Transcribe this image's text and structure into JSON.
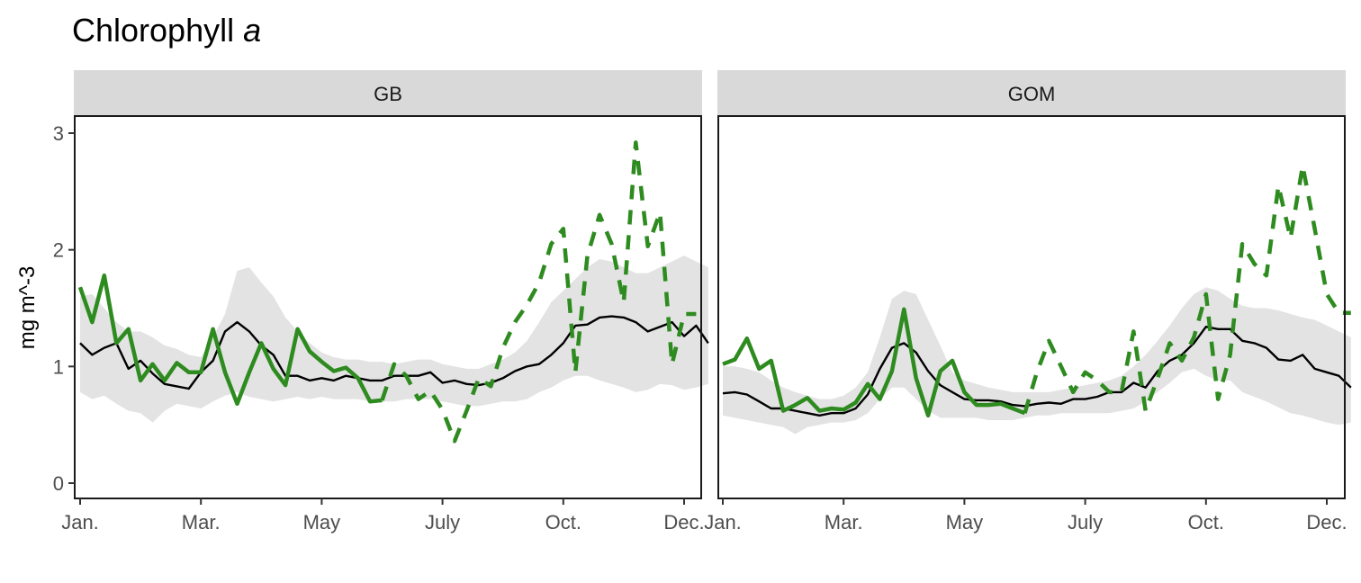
{
  "chart_data": {
    "type": "line",
    "title": "Chlorophyll",
    "title_italic": "a",
    "ylabel": "mg m^-3",
    "xlabel": "",
    "ylim": [
      0,
      3
    ],
    "yticks": [
      0,
      1,
      2,
      3
    ],
    "x_units": "week of year",
    "xlim": [
      1,
      53
    ],
    "xtick_positions": [
      1,
      11,
      21,
      31,
      41,
      51
    ],
    "grid": false,
    "legend": "none",
    "colors": {
      "observed": "#2e8b1f",
      "mean": "#000000",
      "band": "#e3e3e3",
      "strip": "#d9d9d9"
    },
    "panels": [
      {
        "name": "GB",
        "xtick_labels": [
          "Jan.",
          "Mar.",
          "May",
          "July",
          "Oct.",
          "Dec."
        ],
        "band_lower": [
          0.78,
          0.72,
          0.75,
          0.68,
          0.62,
          0.6,
          0.52,
          0.62,
          0.68,
          0.66,
          0.64,
          0.7,
          0.75,
          0.78,
          0.74,
          0.72,
          0.7,
          0.72,
          0.74,
          0.72,
          0.74,
          0.72,
          0.72,
          0.72,
          0.7,
          0.7,
          0.7,
          0.72,
          0.72,
          0.72,
          0.7,
          0.68,
          0.66,
          0.66,
          0.68,
          0.7,
          0.7,
          0.72,
          0.78,
          0.82,
          0.88,
          0.92,
          0.92,
          0.88,
          0.85,
          0.82,
          0.78,
          0.8,
          0.85,
          0.84,
          0.8,
          0.82,
          0.85
        ],
        "band_upper": [
          1.6,
          1.62,
          1.5,
          1.38,
          1.3,
          1.3,
          1.25,
          1.18,
          1.15,
          1.1,
          1.08,
          1.25,
          1.45,
          1.82,
          1.85,
          1.72,
          1.6,
          1.42,
          1.3,
          1.2,
          1.12,
          1.08,
          1.06,
          1.06,
          1.04,
          1.04,
          1.02,
          1.04,
          1.06,
          1.06,
          1.02,
          1.0,
          0.98,
          0.98,
          1.02,
          1.06,
          1.12,
          1.22,
          1.38,
          1.55,
          1.65,
          1.75,
          1.85,
          1.92,
          1.9,
          1.85,
          1.8,
          1.8,
          1.85,
          1.9,
          1.95,
          1.9,
          1.85
        ],
        "mean": [
          1.2,
          1.1,
          1.16,
          1.2,
          0.98,
          1.05,
          0.94,
          0.85,
          0.83,
          0.81,
          0.95,
          1.05,
          1.3,
          1.38,
          1.3,
          1.18,
          1.1,
          0.92,
          0.92,
          0.88,
          0.9,
          0.88,
          0.92,
          0.9,
          0.88,
          0.88,
          0.92,
          0.92,
          0.92,
          0.95,
          0.86,
          0.88,
          0.85,
          0.84,
          0.86,
          0.9,
          0.96,
          1.0,
          1.02,
          1.1,
          1.2,
          1.35,
          1.36,
          1.42,
          1.43,
          1.42,
          1.38,
          1.3,
          1.34,
          1.38,
          1.26,
          1.35,
          1.2
        ],
        "observed_solid": [
          [
            1,
            1.68
          ],
          [
            2,
            1.38
          ],
          [
            3,
            1.78
          ],
          [
            4,
            1.2
          ],
          [
            5,
            1.32
          ],
          [
            6,
            0.88
          ],
          [
            7,
            1.02
          ],
          [
            8,
            0.88
          ],
          [
            9,
            1.03
          ],
          [
            10,
            0.95
          ],
          [
            11,
            0.95
          ],
          [
            12,
            1.32
          ],
          [
            13,
            0.95
          ],
          [
            14,
            0.68
          ],
          [
            15,
            0.95
          ],
          [
            16,
            1.2
          ],
          [
            17,
            0.98
          ],
          [
            18,
            0.84
          ],
          [
            19,
            1.32
          ],
          [
            20,
            1.13
          ],
          [
            21,
            1.04
          ],
          [
            22,
            0.96
          ],
          [
            23,
            0.99
          ],
          [
            24,
            0.9
          ],
          [
            25,
            0.7
          ],
          [
            26,
            0.71
          ]
        ],
        "observed_dashed": [
          [
            26,
            0.71
          ],
          [
            27,
            1.02
          ],
          [
            28,
            0.92
          ],
          [
            29,
            0.72
          ],
          [
            30,
            0.79
          ],
          [
            31,
            0.63
          ],
          [
            32,
            0.36
          ],
          [
            33,
            0.62
          ],
          [
            34,
            0.9
          ],
          [
            35,
            0.83
          ],
          [
            36,
            1.16
          ],
          [
            37,
            1.38
          ],
          [
            38,
            1.53
          ],
          [
            39,
            1.72
          ],
          [
            40,
            2.05
          ],
          [
            41,
            2.18
          ],
          [
            42,
            0.95
          ],
          [
            43,
            1.95
          ],
          [
            44,
            2.3
          ],
          [
            45,
            2.05
          ],
          [
            46,
            1.55
          ],
          [
            47,
            2.92
          ],
          [
            48,
            2.03
          ],
          [
            49,
            2.32
          ],
          [
            50,
            1.02
          ],
          [
            51,
            1.45
          ],
          [
            52,
            1.45
          ]
        ]
      },
      {
        "name": "GOM",
        "xtick_labels": [
          "Jan.",
          "Mar.",
          "May",
          "July",
          "Oct.",
          "Dec."
        ],
        "band_lower": [
          0.58,
          0.56,
          0.54,
          0.52,
          0.5,
          0.48,
          0.42,
          0.48,
          0.5,
          0.52,
          0.52,
          0.54,
          0.6,
          0.72,
          0.82,
          0.82,
          0.72,
          0.62,
          0.56,
          0.56,
          0.56,
          0.56,
          0.54,
          0.54,
          0.54,
          0.56,
          0.58,
          0.58,
          0.6,
          0.6,
          0.6,
          0.6,
          0.6,
          0.62,
          0.64,
          0.7,
          0.78,
          0.86,
          0.95,
          0.98,
          0.92,
          0.88,
          0.88,
          0.78,
          0.74,
          0.7,
          0.65,
          0.6,
          0.58,
          0.55,
          0.52,
          0.5,
          0.52
        ],
        "band_upper": [
          1.0,
          1.0,
          0.98,
          0.95,
          0.88,
          0.82,
          0.78,
          0.75,
          0.72,
          0.72,
          0.75,
          0.82,
          0.95,
          1.25,
          1.58,
          1.65,
          1.62,
          1.4,
          1.18,
          0.95,
          0.88,
          0.85,
          0.82,
          0.8,
          0.78,
          0.78,
          0.78,
          0.78,
          0.8,
          0.82,
          0.84,
          0.86,
          0.88,
          0.92,
          1.0,
          1.1,
          1.22,
          1.35,
          1.5,
          1.62,
          1.68,
          1.65,
          1.58,
          1.52,
          1.5,
          1.5,
          1.48,
          1.45,
          1.42,
          1.4,
          1.35,
          1.3,
          1.25
        ],
        "mean": [
          0.77,
          0.78,
          0.76,
          0.7,
          0.64,
          0.64,
          0.62,
          0.6,
          0.58,
          0.6,
          0.6,
          0.64,
          0.76,
          0.98,
          1.16,
          1.2,
          1.12,
          0.96,
          0.84,
          0.78,
          0.72,
          0.71,
          0.71,
          0.7,
          0.67,
          0.66,
          0.68,
          0.69,
          0.68,
          0.72,
          0.72,
          0.74,
          0.78,
          0.78,
          0.86,
          0.82,
          0.96,
          1.05,
          1.1,
          1.2,
          1.34,
          1.32,
          1.32,
          1.22,
          1.2,
          1.16,
          1.06,
          1.05,
          1.1,
          0.98,
          0.95,
          0.92,
          0.82
        ],
        "observed_solid": [
          [
            1,
            1.02
          ],
          [
            2,
            1.06
          ],
          [
            3,
            1.24
          ],
          [
            4,
            0.98
          ],
          [
            5,
            1.05
          ],
          [
            6,
            0.62
          ],
          [
            7,
            0.67
          ],
          [
            8,
            0.73
          ],
          [
            9,
            0.62
          ],
          [
            10,
            0.64
          ],
          [
            11,
            0.63
          ],
          [
            12,
            0.69
          ],
          [
            13,
            0.85
          ],
          [
            14,
            0.72
          ],
          [
            15,
            0.96
          ],
          [
            16,
            1.49
          ],
          [
            17,
            0.9
          ],
          [
            18,
            0.58
          ],
          [
            19,
            0.96
          ],
          [
            20,
            1.05
          ],
          [
            21,
            0.78
          ],
          [
            22,
            0.67
          ],
          [
            23,
            0.67
          ],
          [
            24,
            0.68
          ],
          [
            25,
            0.64
          ],
          [
            26,
            0.6
          ]
        ],
        "observed_dashed": [
          [
            26,
            0.6
          ],
          [
            27,
            0.95
          ],
          [
            28,
            1.22
          ],
          [
            29,
            1.0
          ],
          [
            30,
            0.78
          ],
          [
            31,
            0.95
          ],
          [
            32,
            0.88
          ],
          [
            33,
            0.78
          ],
          [
            34,
            0.78
          ],
          [
            35,
            1.3
          ],
          [
            36,
            0.62
          ],
          [
            37,
            0.9
          ],
          [
            38,
            1.2
          ],
          [
            39,
            1.05
          ],
          [
            40,
            1.25
          ],
          [
            41,
            1.62
          ],
          [
            42,
            0.72
          ],
          [
            43,
            1.1
          ],
          [
            44,
            2.05
          ],
          [
            45,
            1.88
          ],
          [
            46,
            1.78
          ],
          [
            47,
            2.55
          ],
          [
            48,
            2.1
          ],
          [
            49,
            2.72
          ],
          [
            50,
            2.18
          ],
          [
            51,
            1.62
          ],
          [
            52,
            1.46
          ],
          [
            53,
            1.46
          ]
        ]
      }
    ]
  }
}
